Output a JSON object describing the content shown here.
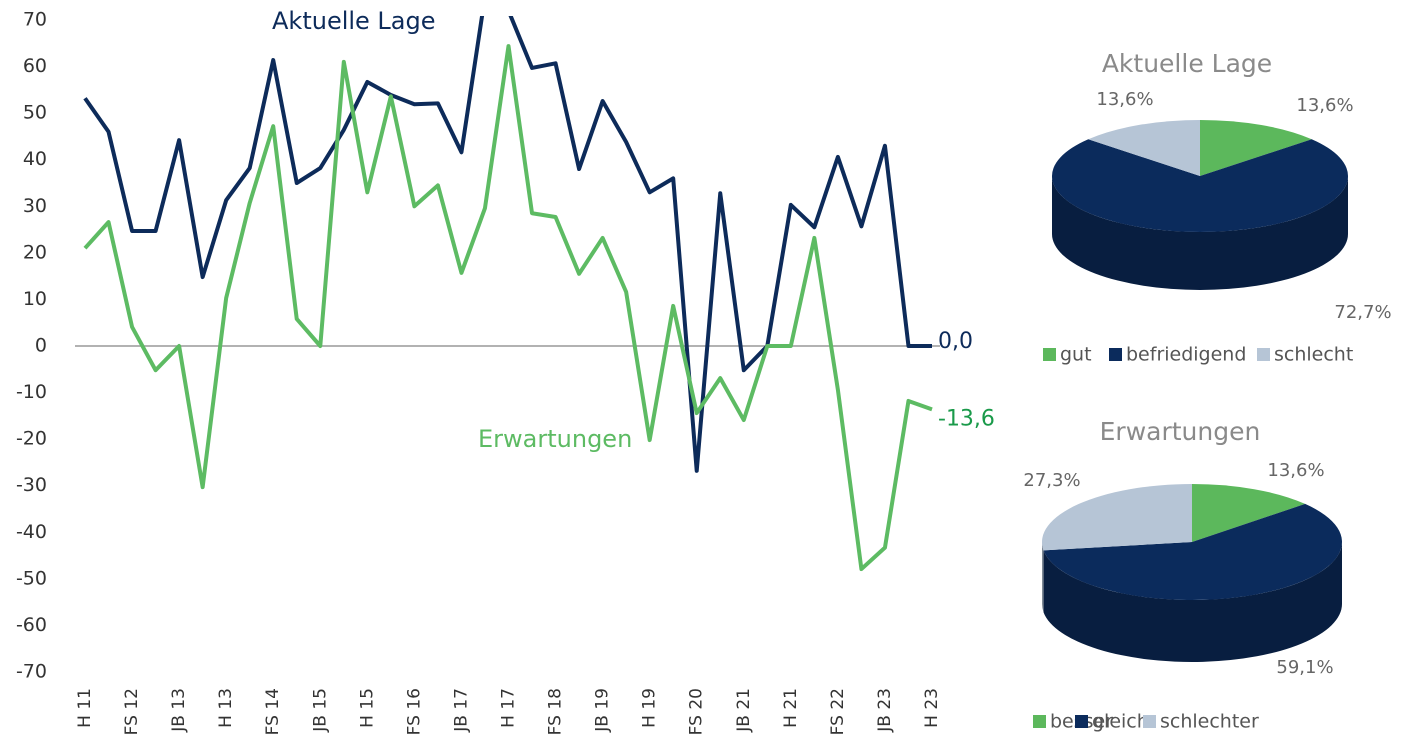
{
  "chart_data": [
    {
      "type": "line",
      "categories": [
        "H 11",
        null,
        "FS 12",
        null,
        "JB 13",
        null,
        "H 13",
        null,
        "FS 14",
        null,
        "JB 15",
        null,
        "H 15",
        null,
        "FS 16",
        null,
        "JB 17",
        null,
        "H 17",
        null,
        "FS 18",
        null,
        "JB 19",
        null,
        "H 19",
        null,
        "FS 20",
        null,
        "JB 21",
        null,
        "H 21",
        null,
        "FS 22",
        null,
        "JB 23",
        null,
        "H 23"
      ],
      "series": [
        {
          "name": "Aktuelle Lage",
          "color": "#0d2b5a",
          "values": [
            53.2,
            46,
            24.7,
            24.7,
            44.2,
            14.8,
            31.3,
            38.2,
            61.4,
            35,
            38.2,
            46.4,
            56.7,
            53.9,
            51.9,
            52.1,
            41.6,
            75,
            72,
            59.7,
            60.7,
            38,
            52.6,
            43.8,
            33,
            36,
            -26.8,
            32.8,
            -5.2,
            0,
            30.3,
            25.5,
            40.6,
            25.7,
            43,
            0,
            0
          ],
          "value_labels": [
            null,
            null,
            null,
            null,
            null,
            null,
            null,
            null,
            null,
            null,
            null,
            null,
            null,
            null,
            null,
            null,
            null,
            null,
            null,
            null,
            null,
            null,
            null,
            null,
            null,
            null,
            null,
            null,
            null,
            null,
            null,
            null,
            null,
            null,
            null,
            null,
            "0,0"
          ]
        },
        {
          "name": "Erwartungen",
          "color": "#5dbb63",
          "values": [
            21,
            26.6,
            4.1,
            -5.2,
            0,
            -30.3,
            10.3,
            30.7,
            47.2,
            5.8,
            0,
            61,
            33,
            53.6,
            30,
            34.5,
            15.7,
            29.6,
            64.4,
            28.5,
            27.7,
            15.5,
            23.2,
            11.6,
            -20.2,
            8.6,
            -14.4,
            -6.9,
            -15.9,
            0,
            0,
            23.2,
            -9.4,
            -47.9,
            -43.3,
            -11.8,
            -13.6
          ],
          "value_labels": [
            null,
            null,
            null,
            null,
            null,
            null,
            null,
            null,
            null,
            null,
            null,
            null,
            null,
            null,
            null,
            null,
            null,
            null,
            null,
            null,
            null,
            null,
            null,
            null,
            null,
            null,
            null,
            null,
            null,
            null,
            null,
            null,
            null,
            null,
            null,
            null,
            "-13,6"
          ]
        }
      ],
      "ylim": [
        -70,
        70
      ],
      "yticks": [
        -70,
        -60,
        -50,
        -40,
        -30,
        -20,
        -10,
        0,
        10,
        20,
        30,
        40,
        50,
        60,
        70
      ]
    },
    {
      "type": "pie",
      "title": "Aktuelle Lage",
      "categories": [
        "gut",
        "befriedigend",
        "schlecht"
      ],
      "values": [
        13.6,
        72.7,
        13.6
      ],
      "value_labels": [
        "13,6%",
        "72,7%",
        "13,6%"
      ],
      "colors": [
        "#5cb85c",
        "#0b2b5c",
        "#b6c5d6"
      ]
    },
    {
      "type": "pie",
      "title": "Erwartungen",
      "categories": [
        "besser",
        "gleich",
        "schlechter"
      ],
      "values": [
        13.6,
        59.1,
        27.3
      ],
      "value_labels": [
        "13,6%",
        "59,1%",
        "27,3%"
      ],
      "colors": [
        "#5cb85c",
        "#0b2b5c",
        "#b6c5d6"
      ]
    }
  ]
}
